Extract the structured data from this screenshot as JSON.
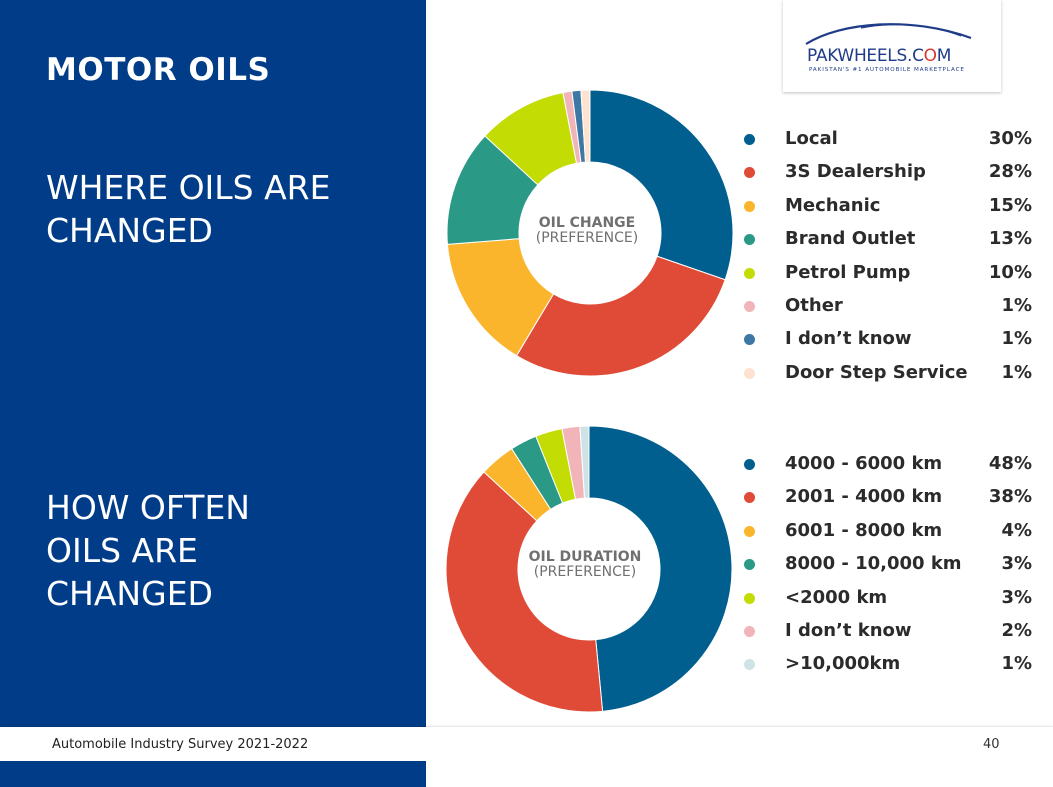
{
  "title": "MOTOR OILS",
  "section1_heading": "WHERE OILS ARE CHANGED",
  "section2_heading": "HOW OFTEN OILS ARE CHANGED",
  "logo": {
    "name_part1": "PAKWHEELS.C",
    "name_part2": "O",
    "name_part3": "M",
    "tagline": "PAKISTAN'S #1 AUTOMOBILE MARKETPLACE"
  },
  "footer": {
    "text": "Automobile Industry Survey 2021-2022",
    "page": "40"
  },
  "chart_data": [
    {
      "type": "pie",
      "center_title": "OIL CHANGE",
      "center_subtitle": "(PREFERENCE)",
      "categories": [
        "Local",
        "3S Dealership",
        "Mechanic",
        "Brand Outlet",
        "Petrol Pump",
        "Other",
        "I don’t know",
        "Door Step Service"
      ],
      "values": [
        30,
        28,
        15,
        13,
        10,
        1,
        1,
        1
      ],
      "labels": [
        "30%",
        "28%",
        "15%",
        "13%",
        "10%",
        "1%",
        "1%",
        "1%"
      ],
      "colors": [
        "#005f8f",
        "#e04b38",
        "#fbb52d",
        "#2a9a87",
        "#c3dc04",
        "#f1b4b8",
        "#3d77a3",
        "#fde3cf"
      ],
      "legend_position": "right"
    },
    {
      "type": "pie",
      "center_title": "OIL DURATION",
      "center_subtitle": "(PREFERENCE)",
      "categories": [
        "4000 - 6000 km",
        "2001 - 4000 km",
        "6001 - 8000 km",
        "8000 - 10,000 km",
        "<2000 km",
        "I don’t know",
        ">10,000km"
      ],
      "values": [
        48,
        38,
        4,
        3,
        3,
        2,
        1
      ],
      "labels": [
        "48%",
        "38%",
        "4%",
        "3%",
        "3%",
        "2%",
        "1%"
      ],
      "colors": [
        "#005f8f",
        "#e04b38",
        "#fbb52d",
        "#2a9a87",
        "#c3dc04",
        "#f1b4b8",
        "#cfe3e6"
      ],
      "legend_position": "right"
    }
  ]
}
